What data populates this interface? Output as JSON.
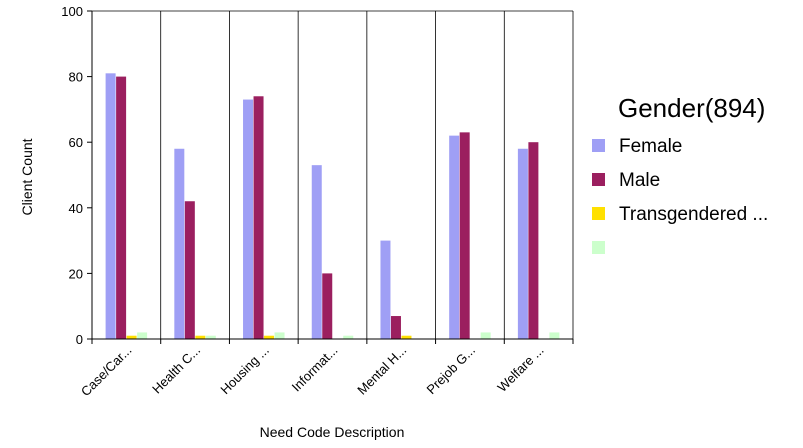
{
  "chart_data": {
    "type": "bar",
    "xlabel": "Need Code Description",
    "ylabel": "Client Count",
    "ylim": [
      0,
      100
    ],
    "yticks": [
      0,
      20,
      40,
      60,
      80,
      100
    ],
    "grid": "vertical-category-dividers",
    "legend_placement": "right",
    "categories": [
      "Case/Car...",
      "Health C...",
      "Housing ...",
      "Informat...",
      "Mental H...",
      "Prejob G...",
      "Welfare ..."
    ],
    "legend_title": "Gender(894)",
    "series": [
      {
        "name": "Female",
        "color": "#9f9ff5",
        "values": [
          81,
          58,
          73,
          53,
          30,
          62,
          58
        ]
      },
      {
        "name": "Male",
        "color": "#9b1f5f",
        "values": [
          80,
          42,
          74,
          20,
          7,
          63,
          60
        ]
      },
      {
        "name": "Transgendered ...",
        "color": "#ffe000",
        "values": [
          1,
          1,
          1,
          0,
          1,
          0,
          0
        ]
      },
      {
        "name": "",
        "color": "#ccffcc",
        "values": [
          2,
          1,
          2,
          1,
          0,
          2,
          2
        ]
      }
    ]
  }
}
